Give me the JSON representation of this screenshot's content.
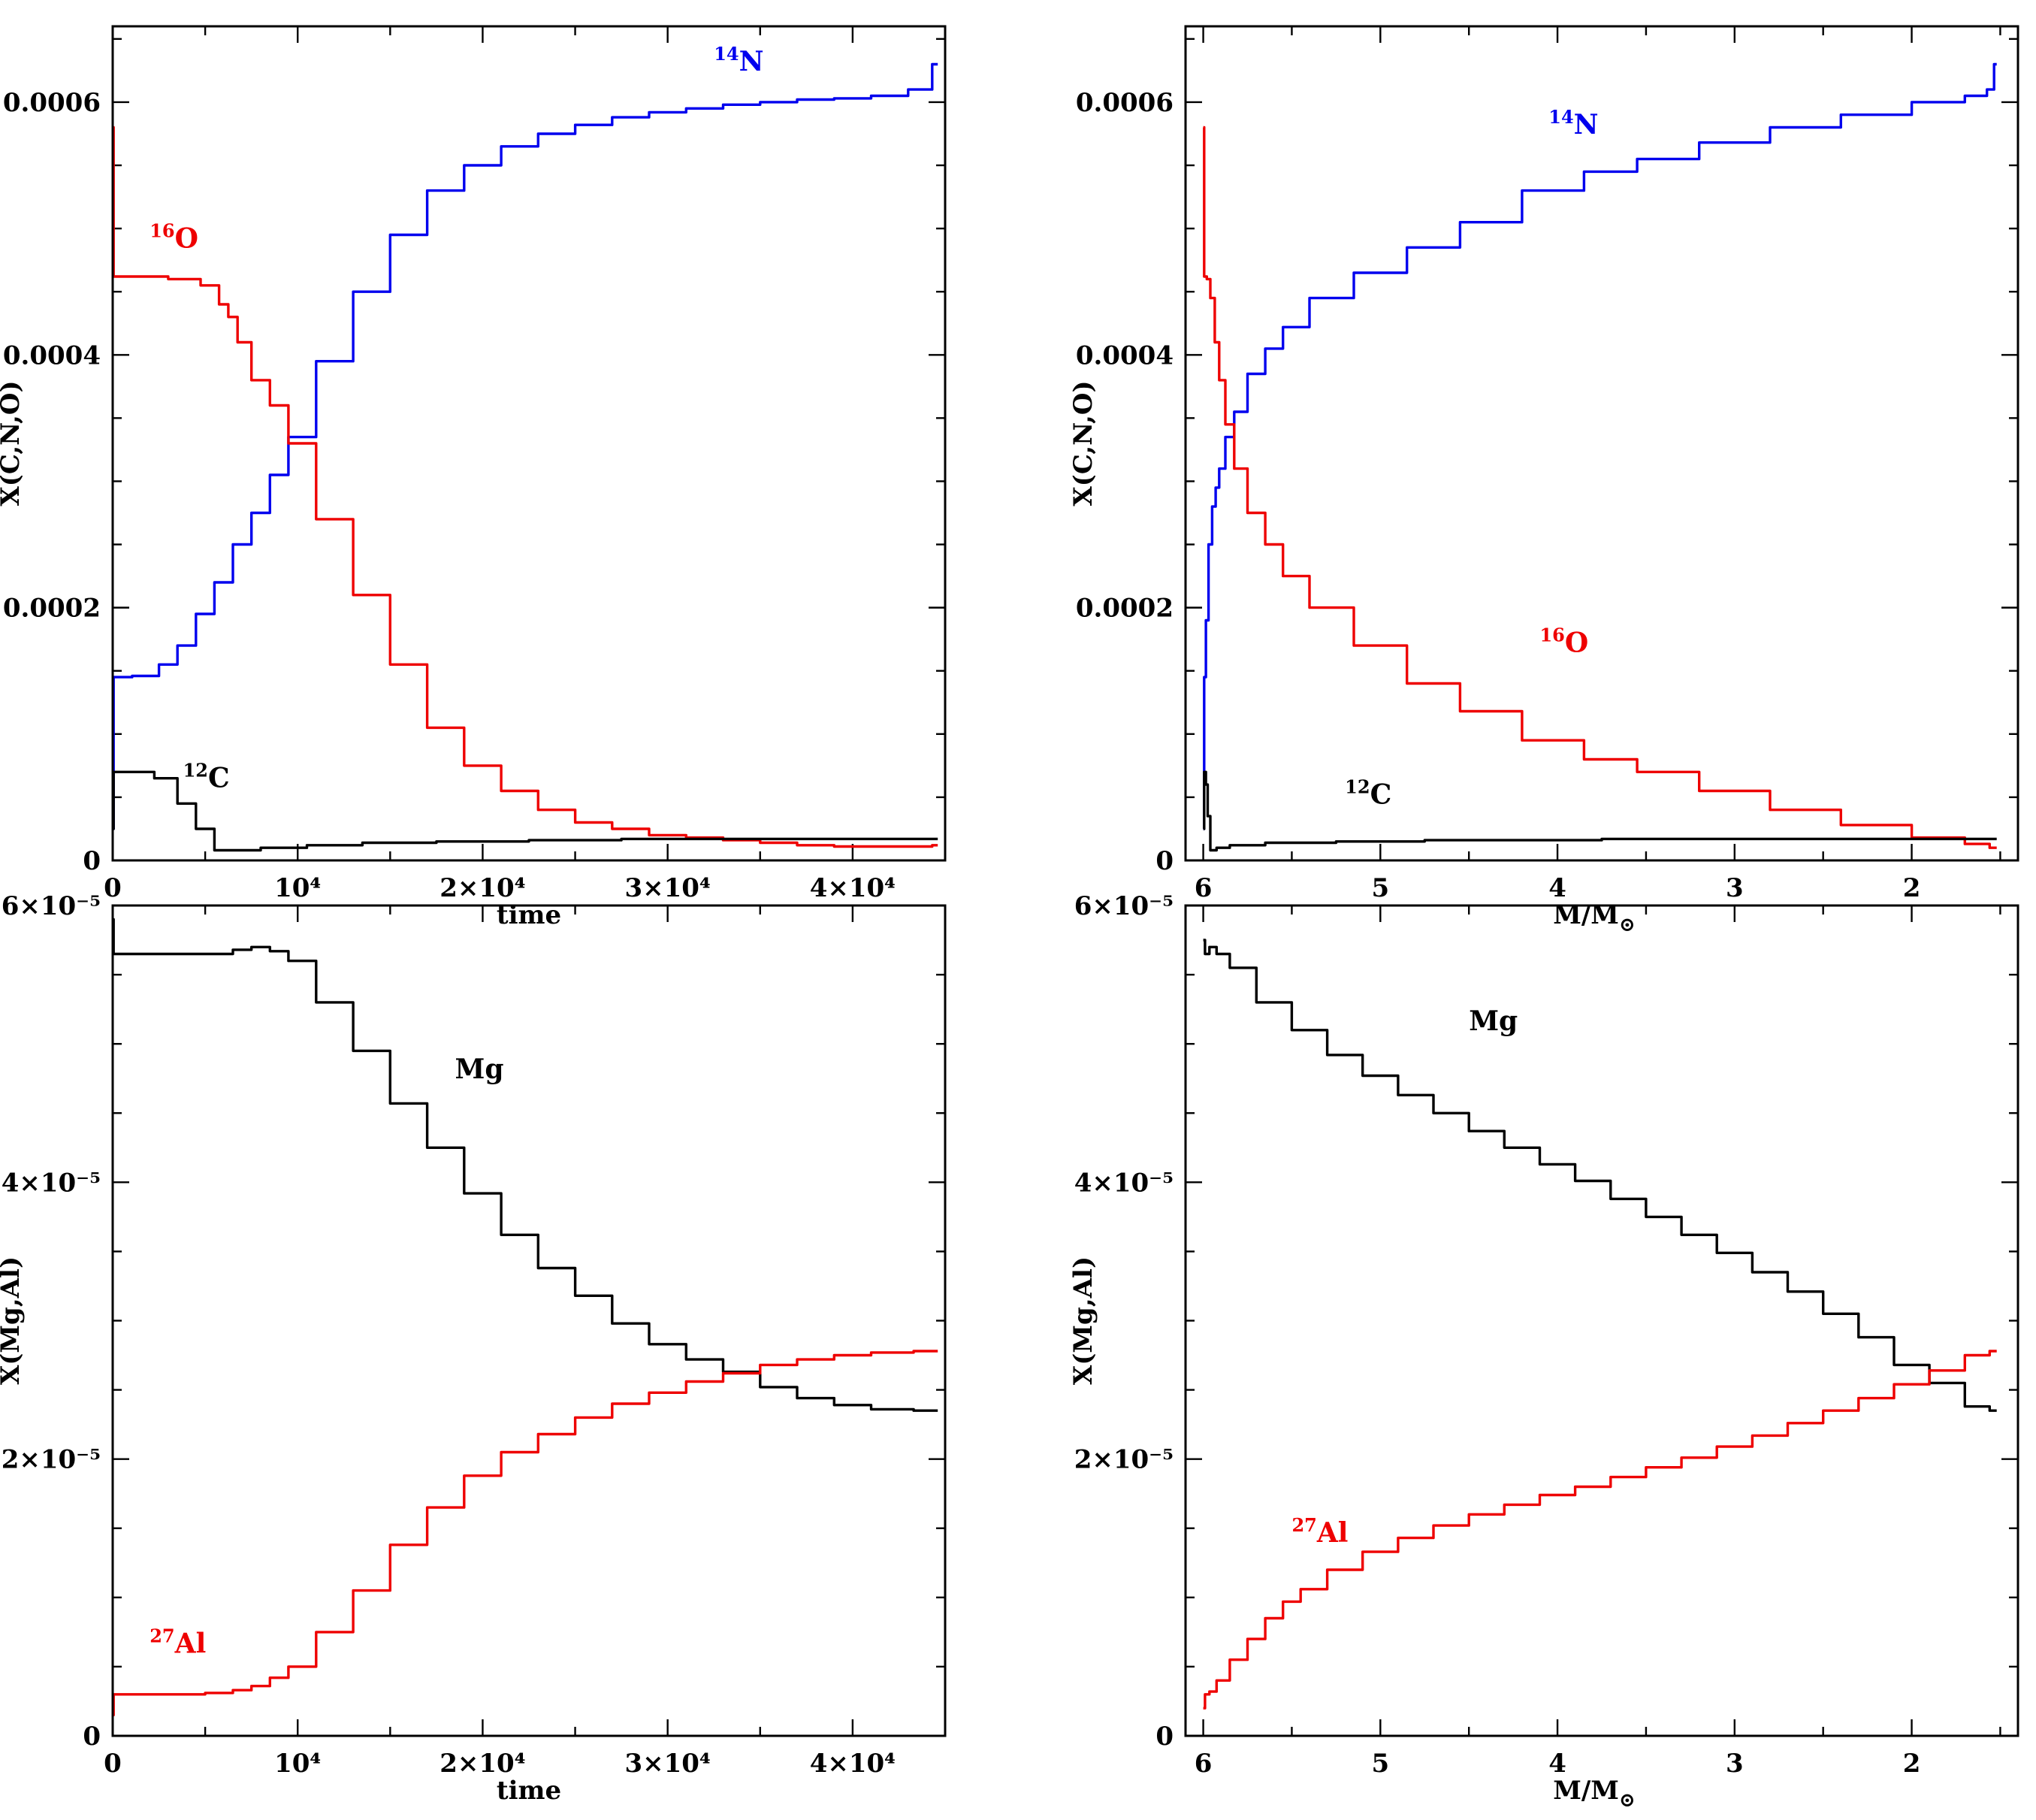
{
  "colors": {
    "c12": "#000000",
    "n14": "#0000ee",
    "o16": "#ee0000",
    "mg": "#000000",
    "al27": "#ee0000"
  },
  "chart_data": [
    {
      "id": "cno_time",
      "type": "line",
      "xlabel": "time",
      "ylabel": "X(C,N,O)",
      "xlim": [
        0,
        45000
      ],
      "ylim": [
        0,
        0.00066
      ],
      "xticks": [
        0,
        10000,
        20000,
        30000,
        40000
      ],
      "xticklabels": [
        "0",
        "10⁴",
        "2×10⁴",
        "3×10⁴",
        "4×10⁴"
      ],
      "yticks": [
        0,
        0.0002,
        0.0004,
        0.0006
      ],
      "yticklabels": [
        "0",
        "0.0002",
        "0.0004",
        "0.0006"
      ],
      "series": [
        {
          "name": "¹⁴N",
          "color": "#0000ee",
          "x": [
            0,
            100,
            2000,
            3000,
            4000,
            5000,
            6000,
            7000,
            8000,
            9000,
            10000,
            12000,
            14000,
            16000,
            18000,
            20000,
            22000,
            24000,
            26000,
            28000,
            30000,
            32000,
            34000,
            36000,
            38000,
            40000,
            42000,
            44000,
            44600
          ],
          "y": [
            2.5e-05,
            0.000145,
            0.000146,
            0.000155,
            0.00017,
            0.000195,
            0.00022,
            0.00025,
            0.000275,
            0.000305,
            0.000335,
            0.000395,
            0.00045,
            0.000495,
            0.00053,
            0.00055,
            0.000565,
            0.000575,
            0.000582,
            0.000588,
            0.000592,
            0.000595,
            0.000598,
            0.0006,
            0.000602,
            0.000603,
            0.000605,
            0.00061,
            0.00063
          ]
        },
        {
          "name": "¹⁶O",
          "color": "#ee0000",
          "x": [
            0,
            100,
            2000,
            4000,
            5500,
            6000,
            6500,
            7000,
            8000,
            9000,
            10000,
            12000,
            14000,
            16000,
            18000,
            20000,
            22000,
            24000,
            26000,
            28000,
            30000,
            32000,
            34000,
            36000,
            38000,
            40000,
            42000,
            44000,
            44600
          ],
          "y": [
            0.00058,
            0.000462,
            0.000462,
            0.00046,
            0.000455,
            0.00044,
            0.00043,
            0.00041,
            0.00038,
            0.00036,
            0.00033,
            0.00027,
            0.00021,
            0.000155,
            0.000105,
            7.5e-05,
            5.5e-05,
            4e-05,
            3e-05,
            2.5e-05,
            2e-05,
            1.8e-05,
            1.6e-05,
            1.4e-05,
            1.2e-05,
            1.1e-05,
            1.1e-05,
            1.1e-05,
            1.2e-05
          ]
        },
        {
          "name": "¹²C",
          "color": "#000000",
          "x": [
            0,
            100,
            1500,
            3000,
            4000,
            5000,
            6000,
            7000,
            9000,
            12000,
            15000,
            20000,
            25000,
            30000,
            35000,
            40000,
            44600
          ],
          "y": [
            2.5e-05,
            7e-05,
            7e-05,
            6.5e-05,
            4.5e-05,
            2.5e-05,
            8e-06,
            8e-06,
            1e-05,
            1.2e-05,
            1.4e-05,
            1.5e-05,
            1.6e-05,
            1.7e-05,
            1.7e-05,
            1.7e-05,
            1.7e-05
          ]
        }
      ],
      "annotations": [
        {
          "sup": "14",
          "el": "N",
          "color": "#0000ee",
          "x": 32500,
          "y": 0.000625
        },
        {
          "sup": "16",
          "el": "O",
          "color": "#ee0000",
          "x": 2000,
          "y": 0.000485
        },
        {
          "sup": "12",
          "el": "C",
          "color": "#000000",
          "x": 3800,
          "y": 5.8e-05
        }
      ]
    },
    {
      "id": "cno_mass",
      "type": "line",
      "xlabel_main": "M/M",
      "xlabel_sub": "⊙",
      "ylabel": "X(C,N,O)",
      "xlim": [
        6.1,
        1.4
      ],
      "ylim": [
        0,
        0.00066
      ],
      "xticks": [
        6,
        5,
        4,
        3,
        2
      ],
      "xticklabels": [
        "6",
        "5",
        "4",
        "3",
        "2"
      ],
      "yticks": [
        0,
        0.0002,
        0.0004,
        0.0006
      ],
      "yticklabels": [
        "0",
        "0.0002",
        "0.0004",
        "0.0006"
      ],
      "series": [
        {
          "name": "¹⁴N",
          "color": "#0000ee",
          "x": [
            6.0,
            5.99,
            5.98,
            5.96,
            5.94,
            5.92,
            5.9,
            5.85,
            5.8,
            5.7,
            5.6,
            5.5,
            5.3,
            5.0,
            4.7,
            4.4,
            4.0,
            3.7,
            3.4,
            3.0,
            2.6,
            2.2,
            1.8,
            1.6,
            1.55,
            1.52
          ],
          "y": [
            2.5e-05,
            0.000145,
            0.00019,
            0.00025,
            0.00028,
            0.000295,
            0.00031,
            0.000335,
            0.000355,
            0.000385,
            0.000405,
            0.000422,
            0.000445,
            0.000465,
            0.000485,
            0.000505,
            0.00053,
            0.000545,
            0.000555,
            0.000568,
            0.00058,
            0.00059,
            0.0006,
            0.000605,
            0.00061,
            0.00063
          ]
        },
        {
          "name": "¹⁶O",
          "color": "#ee0000",
          "x": [
            6.0,
            5.99,
            5.97,
            5.95,
            5.92,
            5.9,
            5.85,
            5.8,
            5.7,
            5.6,
            5.5,
            5.3,
            5.0,
            4.7,
            4.4,
            4.0,
            3.7,
            3.4,
            3.0,
            2.6,
            2.2,
            1.8,
            1.6,
            1.52
          ],
          "y": [
            0.00058,
            0.000462,
            0.00046,
            0.000445,
            0.00041,
            0.00038,
            0.000345,
            0.00031,
            0.000275,
            0.00025,
            0.000225,
            0.0002,
            0.00017,
            0.00014,
            0.000118,
            9.5e-05,
            8e-05,
            7e-05,
            5.5e-05,
            4e-05,
            2.8e-05,
            1.8e-05,
            1.3e-05,
            1e-05
          ]
        },
        {
          "name": "¹²C",
          "color": "#000000",
          "x": [
            6.0,
            5.99,
            5.98,
            5.97,
            5.95,
            5.9,
            5.8,
            5.5,
            5.0,
            4.5,
            4.0,
            3.5,
            3.0,
            2.5,
            2.0,
            1.52
          ],
          "y": [
            2.5e-05,
            7e-05,
            6e-05,
            3.5e-05,
            8e-06,
            1e-05,
            1.2e-05,
            1.4e-05,
            1.5e-05,
            1.6e-05,
            1.6e-05,
            1.7e-05,
            1.7e-05,
            1.7e-05,
            1.7e-05,
            1.7e-05
          ]
        }
      ],
      "annotations": [
        {
          "sup": "14",
          "el": "N",
          "color": "#0000ee",
          "x": 4.05,
          "y": 0.000575
        },
        {
          "sup": "16",
          "el": "O",
          "color": "#ee0000",
          "x": 4.1,
          "y": 0.000165
        },
        {
          "sup": "12",
          "el": "C",
          "color": "#000000",
          "x": 5.2,
          "y": 4.5e-05
        }
      ]
    },
    {
      "id": "mgal_time",
      "type": "line",
      "xlabel": "time",
      "ylabel": "X(Mg,Al)",
      "xlim": [
        0,
        45000
      ],
      "ylim": [
        0,
        6e-05
      ],
      "xticks": [
        0,
        10000,
        20000,
        30000,
        40000
      ],
      "xticklabels": [
        "0",
        "10⁴",
        "2×10⁴",
        "3×10⁴",
        "4×10⁴"
      ],
      "yticks": [
        0,
        2e-05,
        4e-05,
        6e-05
      ],
      "yticklabels": [
        "0",
        "2×10⁻⁵",
        "4×10⁻⁵",
        "6×10⁻⁵"
      ],
      "series": [
        {
          "name": "Mg",
          "color": "#000000",
          "x": [
            0,
            100,
            4000,
            6000,
            7000,
            8000,
            9000,
            10000,
            12000,
            14000,
            16000,
            18000,
            20000,
            22000,
            24000,
            26000,
            28000,
            30000,
            32000,
            34000,
            36000,
            38000,
            40000,
            42000,
            44600
          ],
          "y": [
            5.9e-05,
            5.65e-05,
            5.65e-05,
            5.65e-05,
            5.68e-05,
            5.7e-05,
            5.67e-05,
            5.6e-05,
            5.3e-05,
            4.95e-05,
            4.57e-05,
            4.25e-05,
            3.92e-05,
            3.62e-05,
            3.38e-05,
            3.18e-05,
            2.98e-05,
            2.83e-05,
            2.72e-05,
            2.63e-05,
            2.52e-05,
            2.44e-05,
            2.39e-05,
            2.36e-05,
            2.35e-05
          ]
        },
        {
          "name": "²⁷Al",
          "color": "#ee0000",
          "x": [
            0,
            100,
            4000,
            6000,
            7000,
            8000,
            9000,
            10000,
            12000,
            14000,
            16000,
            18000,
            20000,
            22000,
            24000,
            26000,
            28000,
            30000,
            32000,
            34000,
            36000,
            38000,
            40000,
            42000,
            44600
          ],
          "y": [
            1.5e-06,
            3e-06,
            3e-06,
            3.1e-06,
            3.3e-06,
            3.6e-06,
            4.2e-06,
            5e-06,
            7.5e-06,
            1.05e-05,
            1.38e-05,
            1.65e-05,
            1.88e-05,
            2.05e-05,
            2.18e-05,
            2.3e-05,
            2.4e-05,
            2.48e-05,
            2.56e-05,
            2.62e-05,
            2.68e-05,
            2.72e-05,
            2.75e-05,
            2.77e-05,
            2.78e-05
          ]
        }
      ],
      "annotations": [
        {
          "sup": "",
          "el": "Mg",
          "color": "#000000",
          "x": 18500,
          "y": 4.75e-05
        },
        {
          "sup": "27",
          "el": "Al",
          "color": "#ee0000",
          "x": 2000,
          "y": 6e-06
        }
      ]
    },
    {
      "id": "mgal_mass",
      "type": "line",
      "xlabel_main": "M/M",
      "xlabel_sub": "⊙",
      "ylabel": "X(Mg,Al)",
      "xlim": [
        6.1,
        1.4
      ],
      "ylim": [
        0,
        6e-05
      ],
      "xticks": [
        6,
        5,
        4,
        3,
        2
      ],
      "xticklabels": [
        "6",
        "5",
        "4",
        "3",
        "2"
      ],
      "yticks": [
        0,
        2e-05,
        4e-05,
        6e-05
      ],
      "yticklabels": [
        "0",
        "2×10⁻⁵",
        "4×10⁻⁵",
        "6×10⁻⁵"
      ],
      "series": [
        {
          "name": "Mg",
          "color": "#000000",
          "x": [
            6.0,
            5.98,
            5.95,
            5.9,
            5.8,
            5.6,
            5.4,
            5.2,
            5.0,
            4.8,
            4.6,
            4.4,
            4.2,
            4.0,
            3.8,
            3.6,
            3.4,
            3.2,
            3.0,
            2.8,
            2.6,
            2.4,
            2.2,
            2.0,
            1.8,
            1.6,
            1.52
          ],
          "y": [
            5.75e-05,
            5.65e-05,
            5.7e-05,
            5.65e-05,
            5.55e-05,
            5.3e-05,
            5.1e-05,
            4.92e-05,
            4.77e-05,
            4.63e-05,
            4.5e-05,
            4.37e-05,
            4.25e-05,
            4.13e-05,
            4.01e-05,
            3.88e-05,
            3.75e-05,
            3.62e-05,
            3.49e-05,
            3.35e-05,
            3.21e-05,
            3.05e-05,
            2.88e-05,
            2.68e-05,
            2.55e-05,
            2.38e-05,
            2.35e-05
          ]
        },
        {
          "name": "²⁷Al",
          "color": "#ee0000",
          "x": [
            6.0,
            5.98,
            5.95,
            5.9,
            5.8,
            5.7,
            5.6,
            5.5,
            5.4,
            5.2,
            5.0,
            4.8,
            4.6,
            4.4,
            4.2,
            4.0,
            3.8,
            3.6,
            3.4,
            3.2,
            3.0,
            2.8,
            2.6,
            2.4,
            2.2,
            2.0,
            1.8,
            1.6,
            1.52
          ],
          "y": [
            2e-06,
            3e-06,
            3.2e-06,
            4e-06,
            5.5e-06,
            7e-06,
            8.5e-06,
            9.7e-06,
            1.06e-05,
            1.2e-05,
            1.33e-05,
            1.43e-05,
            1.52e-05,
            1.6e-05,
            1.67e-05,
            1.74e-05,
            1.8e-05,
            1.87e-05,
            1.94e-05,
            2.01e-05,
            2.09e-05,
            2.17e-05,
            2.26e-05,
            2.35e-05,
            2.44e-05,
            2.54e-05,
            2.64e-05,
            2.75e-05,
            2.78e-05
          ]
        }
      ],
      "annotations": [
        {
          "sup": "",
          "el": "Mg",
          "color": "#000000",
          "x": 4.5,
          "y": 5.1e-05
        },
        {
          "sup": "27",
          "el": "Al",
          "color": "#ee0000",
          "x": 5.5,
          "y": 1.4e-05
        }
      ]
    }
  ]
}
